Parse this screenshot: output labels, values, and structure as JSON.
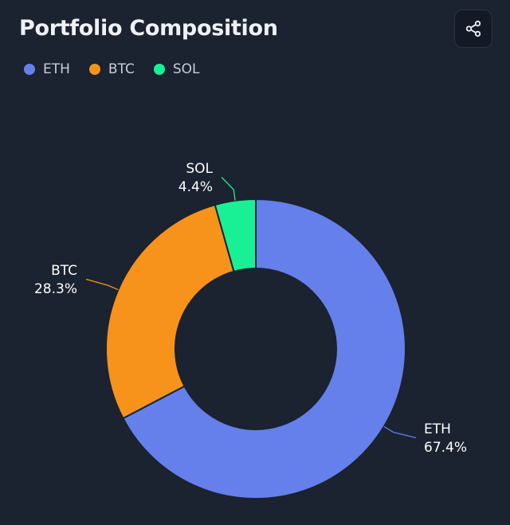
{
  "header": {
    "title": "Portfolio Composition",
    "share_icon": "share-icon"
  },
  "colors": {
    "background": "#1b2230",
    "ETH": "#6580ea",
    "BTC": "#f7931a",
    "SOL": "#19f096"
  },
  "chart_data": {
    "type": "pie",
    "variant": "donut",
    "title": "Portfolio Composition",
    "legend_position": "top-left",
    "categories": [
      "ETH",
      "BTC",
      "SOL"
    ],
    "values": [
      67.4,
      28.3,
      4.4
    ],
    "labels": [
      "67.4%",
      "28.3%",
      "4.4%"
    ],
    "start_angle_deg": 0,
    "direction": "clockwise"
  }
}
